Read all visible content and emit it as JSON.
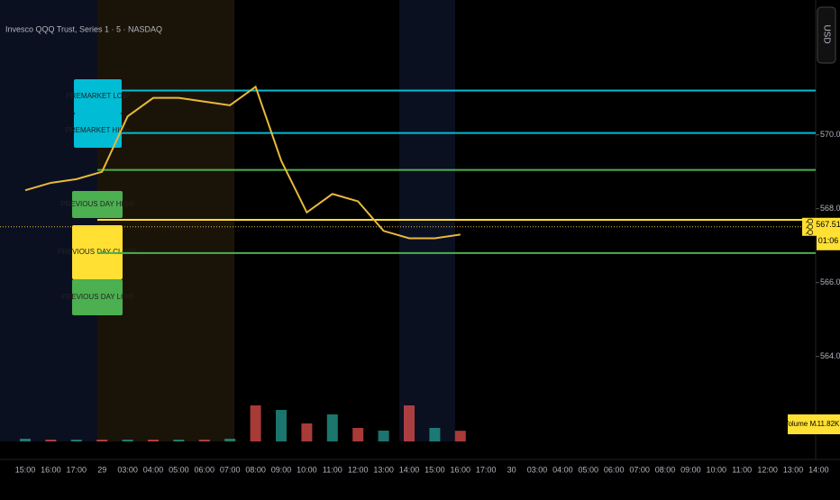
{
  "chart_data": {
    "type": "line",
    "title": "Invesco QQQ Trust, Series 1 · 5 · NASDAQ",
    "currency": "USD",
    "categories": [
      "15:00",
      "16:00",
      "17:00",
      "29",
      "03:00",
      "04:00",
      "05:00",
      "06:00",
      "07:00",
      "08:00",
      "09:00",
      "10:00",
      "11:00",
      "12:00",
      "13:00",
      "14:00",
      "15:00",
      "16:00",
      "17:00",
      "30",
      "03:00",
      "04:00",
      "05:00",
      "06:00",
      "07:00",
      "08:00",
      "09:00",
      "10:00",
      "11:00",
      "12:00",
      "13:00",
      "14:00"
    ],
    "series": [
      {
        "name": "QQQ",
        "color": "#e8b93a",
        "values": [
          568.5,
          568.7,
          568.8,
          569.0,
          570.5,
          571.0,
          571.0,
          570.9,
          570.8,
          571.3,
          569.3,
          567.9,
          568.4,
          568.2,
          567.4,
          567.2,
          567.2,
          567.3,
          null,
          null,
          null,
          null,
          null,
          null,
          null,
          null,
          null,
          null,
          null,
          null,
          null,
          null
        ]
      }
    ],
    "ylim": [
      561.7,
      573.65
    ],
    "yticks": [
      {
        "value": 564,
        "label": "564.00"
      },
      {
        "value": 566,
        "label": "566.00"
      },
      {
        "value": 568,
        "label": "568.00"
      },
      {
        "value": 570,
        "label": "570.00"
      }
    ],
    "last_price": {
      "value": 567.51,
      "label": "567.51"
    },
    "countdown": "01:06",
    "levels": [
      {
        "label": "PREMARKET LOW",
        "value": 571.2,
        "color": "#00bcd4"
      },
      {
        "label": "PREMARKET HIGH",
        "value": 570.05,
        "color": "#00bcd4"
      },
      {
        "label": "PREVIOUS DAY HIGH",
        "value": 569.05,
        "color": "#4caf50"
      },
      {
        "label": "PREVIOUS DAY CLOSE",
        "value": 567.7,
        "color": "#ffe033"
      },
      {
        "label": "PREVIOUS DAY LOW",
        "value": 566.8,
        "color": "#4caf50"
      }
    ],
    "volume": {
      "name": "Volume MA",
      "color": "#26a69a",
      "values": [
        3,
        2,
        2,
        2,
        2,
        2,
        2,
        2,
        3,
        40,
        35,
        20,
        30,
        15,
        12,
        40,
        15,
        11.82,
        null,
        null,
        null,
        null,
        null,
        null,
        null,
        null,
        null,
        null,
        null,
        null,
        null,
        null
      ],
      "y2lim": [
        0,
        60
      ],
      "ma_label": "11.82K"
    }
  }
}
